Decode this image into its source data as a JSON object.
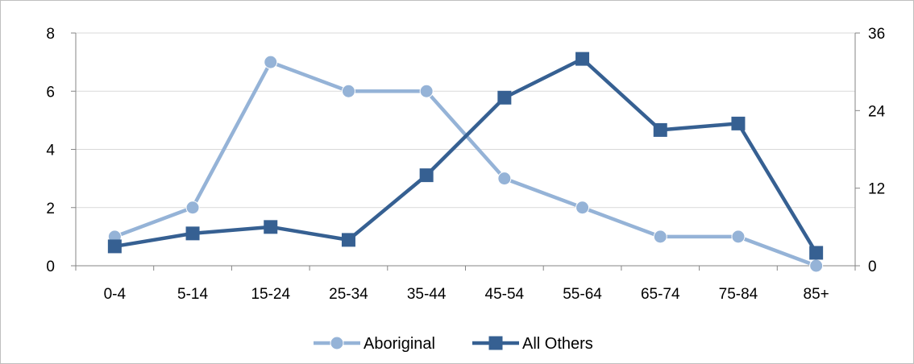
{
  "chart_data": {
    "type": "line",
    "title": "",
    "categories": [
      "0-4",
      "5-14",
      "15-24",
      "25-34",
      "35-44",
      "45-54",
      "55-64",
      "65-74",
      "75-84",
      "85+"
    ],
    "series": [
      {
        "name": "Aboriginal",
        "axis": "left",
        "color": "#95b3d7",
        "marker": "circle",
        "values": [
          1,
          2,
          7,
          6,
          6,
          3,
          2,
          1,
          1,
          0
        ]
      },
      {
        "name": "All Others",
        "axis": "right",
        "color": "#366092",
        "marker": "square",
        "values": [
          3,
          5,
          6,
          4,
          14,
          26,
          32,
          21,
          22,
          2
        ]
      }
    ],
    "y_left": {
      "min": 0,
      "max": 8,
      "ticks": [
        0,
        2,
        4,
        6,
        8
      ]
    },
    "y_right": {
      "min": 0,
      "max": 36,
      "ticks": [
        0,
        12,
        24,
        36
      ]
    },
    "grid": true,
    "legend_position": "bottom"
  }
}
